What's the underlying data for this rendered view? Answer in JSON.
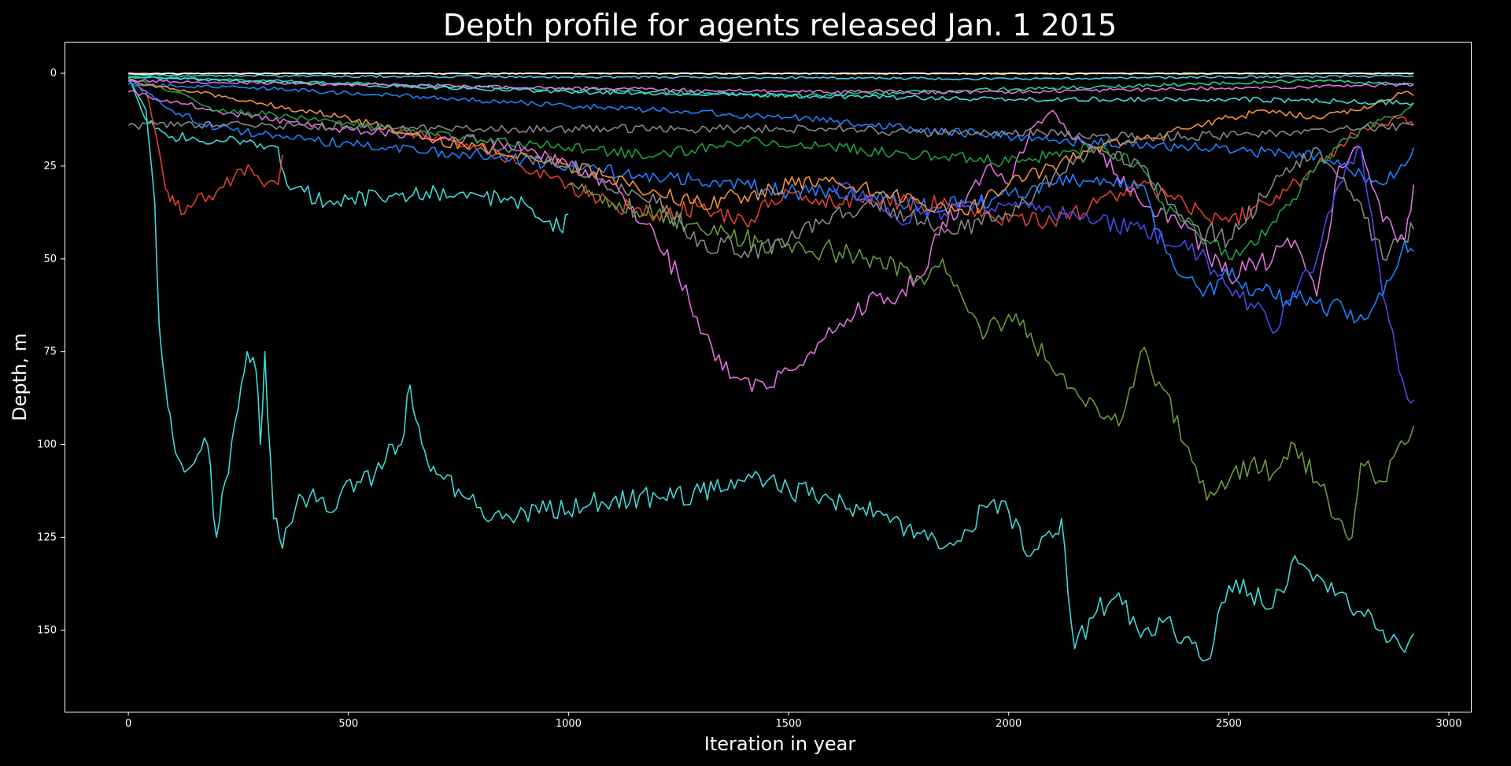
{
  "chart_data": {
    "type": "line",
    "title": "Depth profile for agents released Jan. 1 2015",
    "xlabel": "Iteration in year",
    "ylabel": "Depth, m",
    "xlim": [
      -145,
      3050
    ],
    "ylim": [
      172,
      -8.5
    ],
    "y_inverted": true,
    "xticks": [
      0,
      500,
      1000,
      1500,
      2000,
      2500,
      3000
    ],
    "yticks": [
      0,
      25,
      50,
      75,
      100,
      125,
      150
    ],
    "grid": false,
    "legend": "none",
    "background": "#000000",
    "series": [
      {
        "color": "#40d8d8",
        "x": [
          0,
          40,
          60,
          70,
          80,
          90,
          100,
          120,
          150,
          180,
          200,
          220,
          250,
          270,
          290,
          300,
          310,
          330,
          350,
          380,
          420,
          450,
          480,
          520,
          560,
          600,
          620,
          640,
          660,
          680,
          700,
          750,
          800,
          850,
          900,
          950,
          1000,
          1050,
          1100,
          1200,
          1300,
          1400,
          1450,
          1500,
          1600,
          1700,
          1800,
          1850,
          1900,
          1950,
          2000,
          2050,
          2100,
          2120,
          2150,
          2200,
          2250,
          2300,
          2350,
          2400,
          2450,
          2500,
          2550,
          2600,
          2650,
          2700,
          2750,
          2800,
          2850,
          2900,
          2920
        ],
        "y": [
          1,
          10,
          35,
          68,
          80,
          90,
          97,
          105,
          105,
          100,
          125,
          110,
          90,
          75,
          80,
          100,
          75,
          120,
          128,
          117,
          112,
          118,
          114,
          110,
          108,
          100,
          100,
          84,
          95,
          105,
          108,
          112,
          117,
          120,
          118,
          118,
          118,
          116,
          115,
          114,
          113,
          110,
          110,
          112,
          115,
          118,
          124,
          128,
          123,
          117,
          118,
          130,
          125,
          120,
          155,
          145,
          140,
          152,
          148,
          152,
          158,
          138,
          140,
          144,
          130,
          135,
          140,
          145,
          150,
          156,
          151
        ]
      },
      {
        "color": "#40d8d8",
        "x": [
          0,
          30,
          60,
          100,
          200,
          300,
          340,
          360,
          400,
          450,
          500,
          600,
          700,
          800,
          900,
          950,
          980,
          1000
        ],
        "y": [
          1,
          10,
          15,
          17,
          18,
          19,
          20,
          30,
          32,
          35,
          34,
          33,
          32,
          33,
          35,
          40,
          42,
          38
        ]
      },
      {
        "color": "#e04030",
        "x": [
          0,
          40,
          60,
          80,
          90,
          100,
          120,
          150,
          200,
          240,
          280,
          300,
          340,
          350
        ],
        "y": [
          1,
          5,
          15,
          28,
          32,
          33,
          38,
          35,
          32,
          28,
          26,
          29,
          30,
          22
        ]
      },
      {
        "color": "#e04030",
        "x": [
          600,
          800,
          1000,
          1100,
          1200,
          1300,
          1400,
          1500,
          1600,
          1700,
          1800,
          1900,
          2000,
          2100,
          2200,
          2300,
          2400,
          2500,
          2600,
          2700,
          2800,
          2900,
          2920
        ],
        "y": [
          15,
          20,
          30,
          35,
          38,
          36,
          40,
          32,
          35,
          34,
          35,
          36,
          40,
          40,
          35,
          30,
          35,
          40,
          35,
          25,
          15,
          12,
          14
        ]
      },
      {
        "color": "#e070e0",
        "x": [
          0,
          200,
          400,
          600,
          800,
          900,
          1000,
          1100,
          1200,
          1250,
          1300,
          1350,
          1400,
          1450,
          1500,
          1550,
          1600,
          1650,
          1700,
          1750,
          1800,
          1850,
          1900,
          1950,
          2000,
          2050,
          2100,
          2150,
          2200,
          2300,
          2400,
          2500,
          2600,
          2650,
          2700,
          2750,
          2800,
          2850,
          2900,
          2920
        ],
        "y": [
          5,
          10,
          14,
          16,
          18,
          20,
          25,
          30,
          45,
          55,
          70,
          80,
          82,
          85,
          80,
          75,
          70,
          65,
          60,
          60,
          55,
          40,
          35,
          25,
          30,
          15,
          10,
          18,
          20,
          35,
          40,
          55,
          50,
          45,
          60,
          25,
          20,
          40,
          45,
          30
        ]
      },
      {
        "color": "#1e82ff",
        "x": [
          0,
          100,
          200,
          400,
          600,
          800,
          1000,
          1200,
          1400,
          1500,
          1600,
          1700,
          1800,
          1900,
          2000,
          2100,
          2200,
          2300,
          2350,
          2400,
          2450,
          2500,
          2600,
          2700,
          2800,
          2850,
          2900,
          2920
        ],
        "y": [
          2,
          10,
          15,
          18,
          20,
          22,
          25,
          28,
          30,
          32,
          32,
          34,
          36,
          35,
          33,
          30,
          28,
          30,
          45,
          55,
          58,
          55,
          60,
          62,
          65,
          60,
          45,
          48
        ]
      },
      {
        "color": "#1e82ff",
        "x": [
          0,
          300,
          600,
          900,
          1200,
          1500,
          1800,
          2100,
          2400,
          2700,
          2850,
          2900,
          2920
        ],
        "y": [
          3,
          4,
          6,
          8,
          10,
          12,
          15,
          18,
          20,
          22,
          30,
          25,
          20
        ]
      },
      {
        "color": "#4848e8",
        "x": [
          1600,
          1700,
          1750,
          1800,
          1900,
          2000,
          2100,
          2200,
          2300,
          2400,
          2450,
          2500,
          2550,
          2600,
          2650,
          2700,
          2750,
          2800,
          2850,
          2880,
          2900,
          2920
        ],
        "y": [
          30,
          35,
          40,
          38,
          36,
          35,
          38,
          40,
          42,
          45,
          50,
          58,
          62,
          70,
          60,
          50,
          30,
          20,
          60,
          75,
          85,
          88
        ]
      },
      {
        "color": "#6a9a40",
        "x": [
          1000,
          1100,
          1200,
          1300,
          1400,
          1500,
          1600,
          1700,
          1800,
          1850,
          1900,
          1950,
          2000,
          2050,
          2100,
          2150,
          2200,
          2250,
          2300,
          2350,
          2400,
          2450,
          2500,
          2550,
          2600,
          2650,
          2700,
          2750,
          2780,
          2800,
          2850,
          2900,
          2920
        ],
        "y": [
          30,
          35,
          38,
          42,
          45,
          46,
          48,
          50,
          55,
          50,
          62,
          70,
          65,
          70,
          80,
          85,
          90,
          95,
          75,
          85,
          100,
          115,
          110,
          105,
          108,
          100,
          110,
          120,
          125,
          105,
          110,
          100,
          95
        ]
      },
      {
        "color": "#20a040",
        "x": [
          0,
          100,
          200,
          400,
          600,
          800,
          1000,
          1200,
          1400,
          1600,
          1800,
          2000,
          2100,
          2200,
          2300,
          2350,
          2400,
          2450,
          2500,
          2550,
          2600,
          2700,
          2800,
          2900,
          2920
        ],
        "y": [
          1,
          5,
          10,
          12,
          15,
          18,
          20,
          22,
          18,
          20,
          22,
          24,
          22,
          20,
          25,
          35,
          40,
          45,
          50,
          45,
          40,
          25,
          15,
          10,
          8
        ]
      },
      {
        "color": "#f09040",
        "x": [
          0,
          300,
          500,
          700,
          900,
          1000,
          1100,
          1200,
          1300,
          1400,
          1500,
          1600,
          1700,
          1800,
          1900,
          2000,
          2100,
          2200,
          2300,
          2400,
          2500,
          2600,
          2700,
          2800,
          2900,
          2920
        ],
        "y": [
          2,
          8,
          12,
          18,
          22,
          25,
          28,
          32,
          35,
          33,
          30,
          28,
          32,
          35,
          38,
          30,
          25,
          20,
          18,
          15,
          12,
          10,
          12,
          10,
          5,
          6
        ]
      },
      {
        "color": "#888888",
        "x": [
          0,
          200,
          400,
          600,
          800,
          1000,
          1200,
          1400,
          1600,
          1800,
          2000,
          2200,
          2400,
          2600,
          2800,
          2920
        ],
        "y": [
          14,
          14,
          14,
          15,
          15,
          15,
          15,
          15,
          15,
          16,
          16,
          17,
          17,
          16,
          15,
          14
        ]
      },
      {
        "color": "#888888",
        "x": [
          800,
          1000,
          1200,
          1300,
          1400,
          1500,
          1600,
          1700,
          1800,
          1900,
          2000,
          2100,
          2200,
          2300,
          2400,
          2500,
          2600,
          2700,
          2800,
          2850,
          2900,
          2920
        ],
        "y": [
          20,
          25,
          35,
          45,
          48,
          45,
          38,
          35,
          40,
          42,
          38,
          28,
          20,
          25,
          40,
          45,
          30,
          20,
          35,
          50,
          45,
          42
        ]
      },
      {
        "color": "#20d890",
        "x": [
          0,
          300,
          600,
          900,
          1200,
          1500,
          1800,
          2100,
          2400,
          2700,
          2920
        ],
        "y": [
          1,
          2,
          3,
          4,
          5,
          6,
          5,
          4,
          3,
          2,
          3
        ]
      },
      {
        "color": "#40c8f0",
        "x": [
          0,
          500,
          1000,
          1500,
          2000,
          2500,
          2920
        ],
        "y": [
          0.5,
          0.8,
          1,
          1.2,
          1.5,
          1,
          0.8
        ]
      },
      {
        "color": "#d0a020",
        "x": [
          0,
          500,
          1000,
          1500,
          2000,
          2500,
          2920
        ],
        "y": [
          0,
          0,
          0,
          0,
          0,
          0,
          0
        ]
      },
      {
        "color": "#ffffff",
        "x": [
          0,
          500,
          1000,
          1500,
          2000,
          2500,
          2920
        ],
        "y": [
          0,
          0,
          0,
          0,
          0,
          0,
          0
        ]
      },
      {
        "color": "#40d8d8",
        "x": [
          0,
          500,
          1000,
          1500,
          2000,
          2500,
          2920
        ],
        "y": [
          1,
          3,
          5,
          6,
          7,
          7,
          8
        ]
      },
      {
        "color": "#e070e0",
        "x": [
          0,
          500,
          1000,
          1500,
          2000,
          2500,
          2920
        ],
        "y": [
          2,
          3,
          4,
          5,
          5,
          4,
          3
        ]
      }
    ]
  }
}
